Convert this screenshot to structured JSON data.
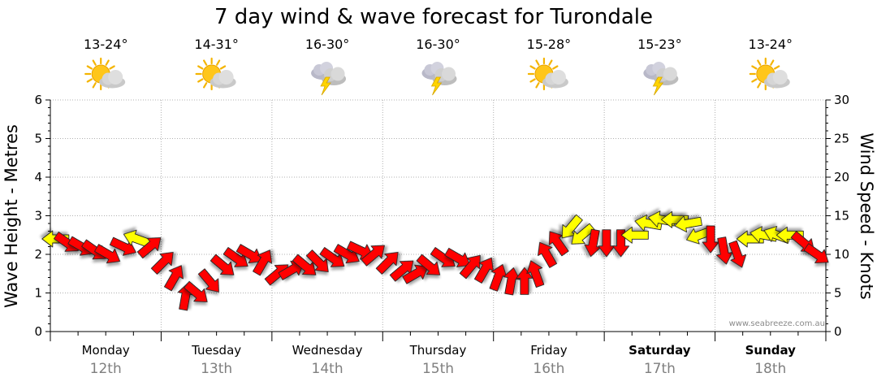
{
  "title": "7 day wind & wave forecast for Turondale",
  "credit": "www.seabreeze.com.au",
  "colors": {
    "light_wind": "#ffff00",
    "strong_wind": "#ff0000",
    "arrow_stroke": "#222222",
    "grid": "#b0b0b0"
  },
  "chart_data": {
    "type": "line",
    "title": "7 day wind & wave forecast for Turondale",
    "ylabel": "Wave Height - Metres",
    "y2label": "Wind Speed - Knots",
    "ylim": [
      0,
      6
    ],
    "y2lim": [
      0,
      30
    ],
    "yticks": [
      "0",
      "1",
      "2",
      "3",
      "4",
      "5",
      "6"
    ],
    "y2ticks": [
      "0",
      "5",
      "10",
      "15",
      "20",
      "25",
      "30"
    ],
    "grid": true,
    "days": [
      {
        "day": "Monday",
        "date": "12th",
        "temp": "13-24°",
        "icon": "sun-cloud-icon",
        "bold": false
      },
      {
        "day": "Tuesday",
        "date": "13th",
        "temp": "14-31°",
        "icon": "sun-cloud-icon",
        "bold": false
      },
      {
        "day": "Wednesday",
        "date": "14th",
        "temp": "16-30°",
        "icon": "storm-cloud-icon",
        "bold": false
      },
      {
        "day": "Thursday",
        "date": "15th",
        "temp": "16-30°",
        "icon": "storm-cloud-icon",
        "bold": false
      },
      {
        "day": "Friday",
        "date": "16th",
        "temp": "15-28°",
        "icon": "sun-cloud-icon",
        "bold": false
      },
      {
        "day": "Saturday",
        "date": "17th",
        "temp": "15-23°",
        "icon": "storm-cloud-icon",
        "bold": true
      },
      {
        "day": "Sunday",
        "date": "18th",
        "temp": "13-24°",
        "icon": "sun-cloud-icon",
        "bold": true
      }
    ],
    "wind_series": {
      "name": "Wind Speed",
      "unit": "knots",
      "points": [
        {
          "t": 0.05,
          "knots": 12,
          "dir": 180,
          "strong": false
        },
        {
          "t": 0.15,
          "knots": 11.5,
          "dir": 35,
          "strong": true
        },
        {
          "t": 0.28,
          "knots": 11,
          "dir": 30,
          "strong": true
        },
        {
          "t": 0.4,
          "knots": 10.5,
          "dir": 35,
          "strong": true
        },
        {
          "t": 0.52,
          "knots": 10,
          "dir": 30,
          "strong": true
        },
        {
          "t": 0.66,
          "knots": 11,
          "dir": 25,
          "strong": true
        },
        {
          "t": 0.78,
          "knots": 12,
          "dir": 200,
          "strong": false
        },
        {
          "t": 0.9,
          "knots": 11,
          "dir": 320,
          "strong": true
        },
        {
          "t": 1.02,
          "knots": 9,
          "dir": 315,
          "strong": true
        },
        {
          "t": 1.12,
          "knots": 7,
          "dir": 300,
          "strong": true
        },
        {
          "t": 1.22,
          "knots": 4.5,
          "dir": 280,
          "strong": true
        },
        {
          "t": 1.32,
          "knots": 5,
          "dir": 40,
          "strong": true
        },
        {
          "t": 1.44,
          "knots": 6.5,
          "dir": 50,
          "strong": true
        },
        {
          "t": 1.56,
          "knots": 8.5,
          "dir": 40,
          "strong": true
        },
        {
          "t": 1.68,
          "knots": 9.5,
          "dir": 35,
          "strong": true
        },
        {
          "t": 1.8,
          "knots": 10,
          "dir": 30,
          "strong": true
        },
        {
          "t": 1.92,
          "knots": 9,
          "dir": 300,
          "strong": true
        },
        {
          "t": 2.05,
          "knots": 7.5,
          "dir": 320,
          "strong": true
        },
        {
          "t": 2.18,
          "knots": 8,
          "dir": 330,
          "strong": true
        },
        {
          "t": 2.3,
          "knots": 8.5,
          "dir": 40,
          "strong": true
        },
        {
          "t": 2.42,
          "knots": 9,
          "dir": 45,
          "strong": true
        },
        {
          "t": 2.55,
          "knots": 9.5,
          "dir": 35,
          "strong": true
        },
        {
          "t": 2.68,
          "knots": 10,
          "dir": 30,
          "strong": true
        },
        {
          "t": 2.8,
          "knots": 10.5,
          "dir": 25,
          "strong": true
        },
        {
          "t": 2.92,
          "knots": 10,
          "dir": 320,
          "strong": true
        },
        {
          "t": 3.05,
          "knots": 9,
          "dir": 315,
          "strong": true
        },
        {
          "t": 3.18,
          "knots": 8,
          "dir": 320,
          "strong": true
        },
        {
          "t": 3.3,
          "knots": 7.5,
          "dir": 330,
          "strong": true
        },
        {
          "t": 3.42,
          "knots": 8.5,
          "dir": 40,
          "strong": true
        },
        {
          "t": 3.55,
          "knots": 9.5,
          "dir": 35,
          "strong": true
        },
        {
          "t": 3.68,
          "knots": 9.5,
          "dir": 30,
          "strong": true
        },
        {
          "t": 3.8,
          "knots": 8.5,
          "dir": 310,
          "strong": true
        },
        {
          "t": 3.92,
          "knots": 8,
          "dir": 300,
          "strong": true
        },
        {
          "t": 4.04,
          "knots": 7,
          "dir": 290,
          "strong": true
        },
        {
          "t": 4.16,
          "knots": 6.5,
          "dir": 280,
          "strong": true
        },
        {
          "t": 4.28,
          "knots": 6.5,
          "dir": 270,
          "strong": true
        },
        {
          "t": 4.38,
          "knots": 7.5,
          "dir": 250,
          "strong": true
        },
        {
          "t": 4.48,
          "knots": 10,
          "dir": 240,
          "strong": true
        },
        {
          "t": 4.58,
          "knots": 11.5,
          "dir": 235,
          "strong": true
        },
        {
          "t": 4.7,
          "knots": 13.5,
          "dir": 130,
          "strong": false
        },
        {
          "t": 4.8,
          "knots": 12.5,
          "dir": 140,
          "strong": false
        },
        {
          "t": 4.9,
          "knots": 11.5,
          "dir": 100,
          "strong": true
        },
        {
          "t": 5.02,
          "knots": 11.5,
          "dir": 90,
          "strong": true
        },
        {
          "t": 5.15,
          "knots": 11.5,
          "dir": 90,
          "strong": true
        },
        {
          "t": 5.28,
          "knots": 12.5,
          "dir": 180,
          "strong": false
        },
        {
          "t": 5.4,
          "knots": 14,
          "dir": 190,
          "strong": false
        },
        {
          "t": 5.52,
          "knots": 14.5,
          "dir": 190,
          "strong": false
        },
        {
          "t": 5.64,
          "knots": 14.5,
          "dir": 180,
          "strong": false
        },
        {
          "t": 5.76,
          "knots": 14,
          "dir": 170,
          "strong": false
        },
        {
          "t": 5.86,
          "knots": 12.5,
          "dir": 160,
          "strong": false
        },
        {
          "t": 5.96,
          "knots": 12,
          "dir": 90,
          "strong": true
        },
        {
          "t": 6.08,
          "knots": 10.5,
          "dir": 80,
          "strong": true
        },
        {
          "t": 6.2,
          "knots": 10,
          "dir": 70,
          "strong": true
        },
        {
          "t": 6.32,
          "knots": 12,
          "dir": 180,
          "strong": false
        },
        {
          "t": 6.44,
          "knots": 12.5,
          "dir": 190,
          "strong": false
        },
        {
          "t": 6.56,
          "knots": 12.5,
          "dir": 200,
          "strong": false
        },
        {
          "t": 6.68,
          "knots": 12.5,
          "dir": 180,
          "strong": false
        },
        {
          "t": 6.8,
          "knots": 11.5,
          "dir": 40,
          "strong": true
        },
        {
          "t": 6.92,
          "knots": 10,
          "dir": 35,
          "strong": true
        }
      ]
    }
  }
}
